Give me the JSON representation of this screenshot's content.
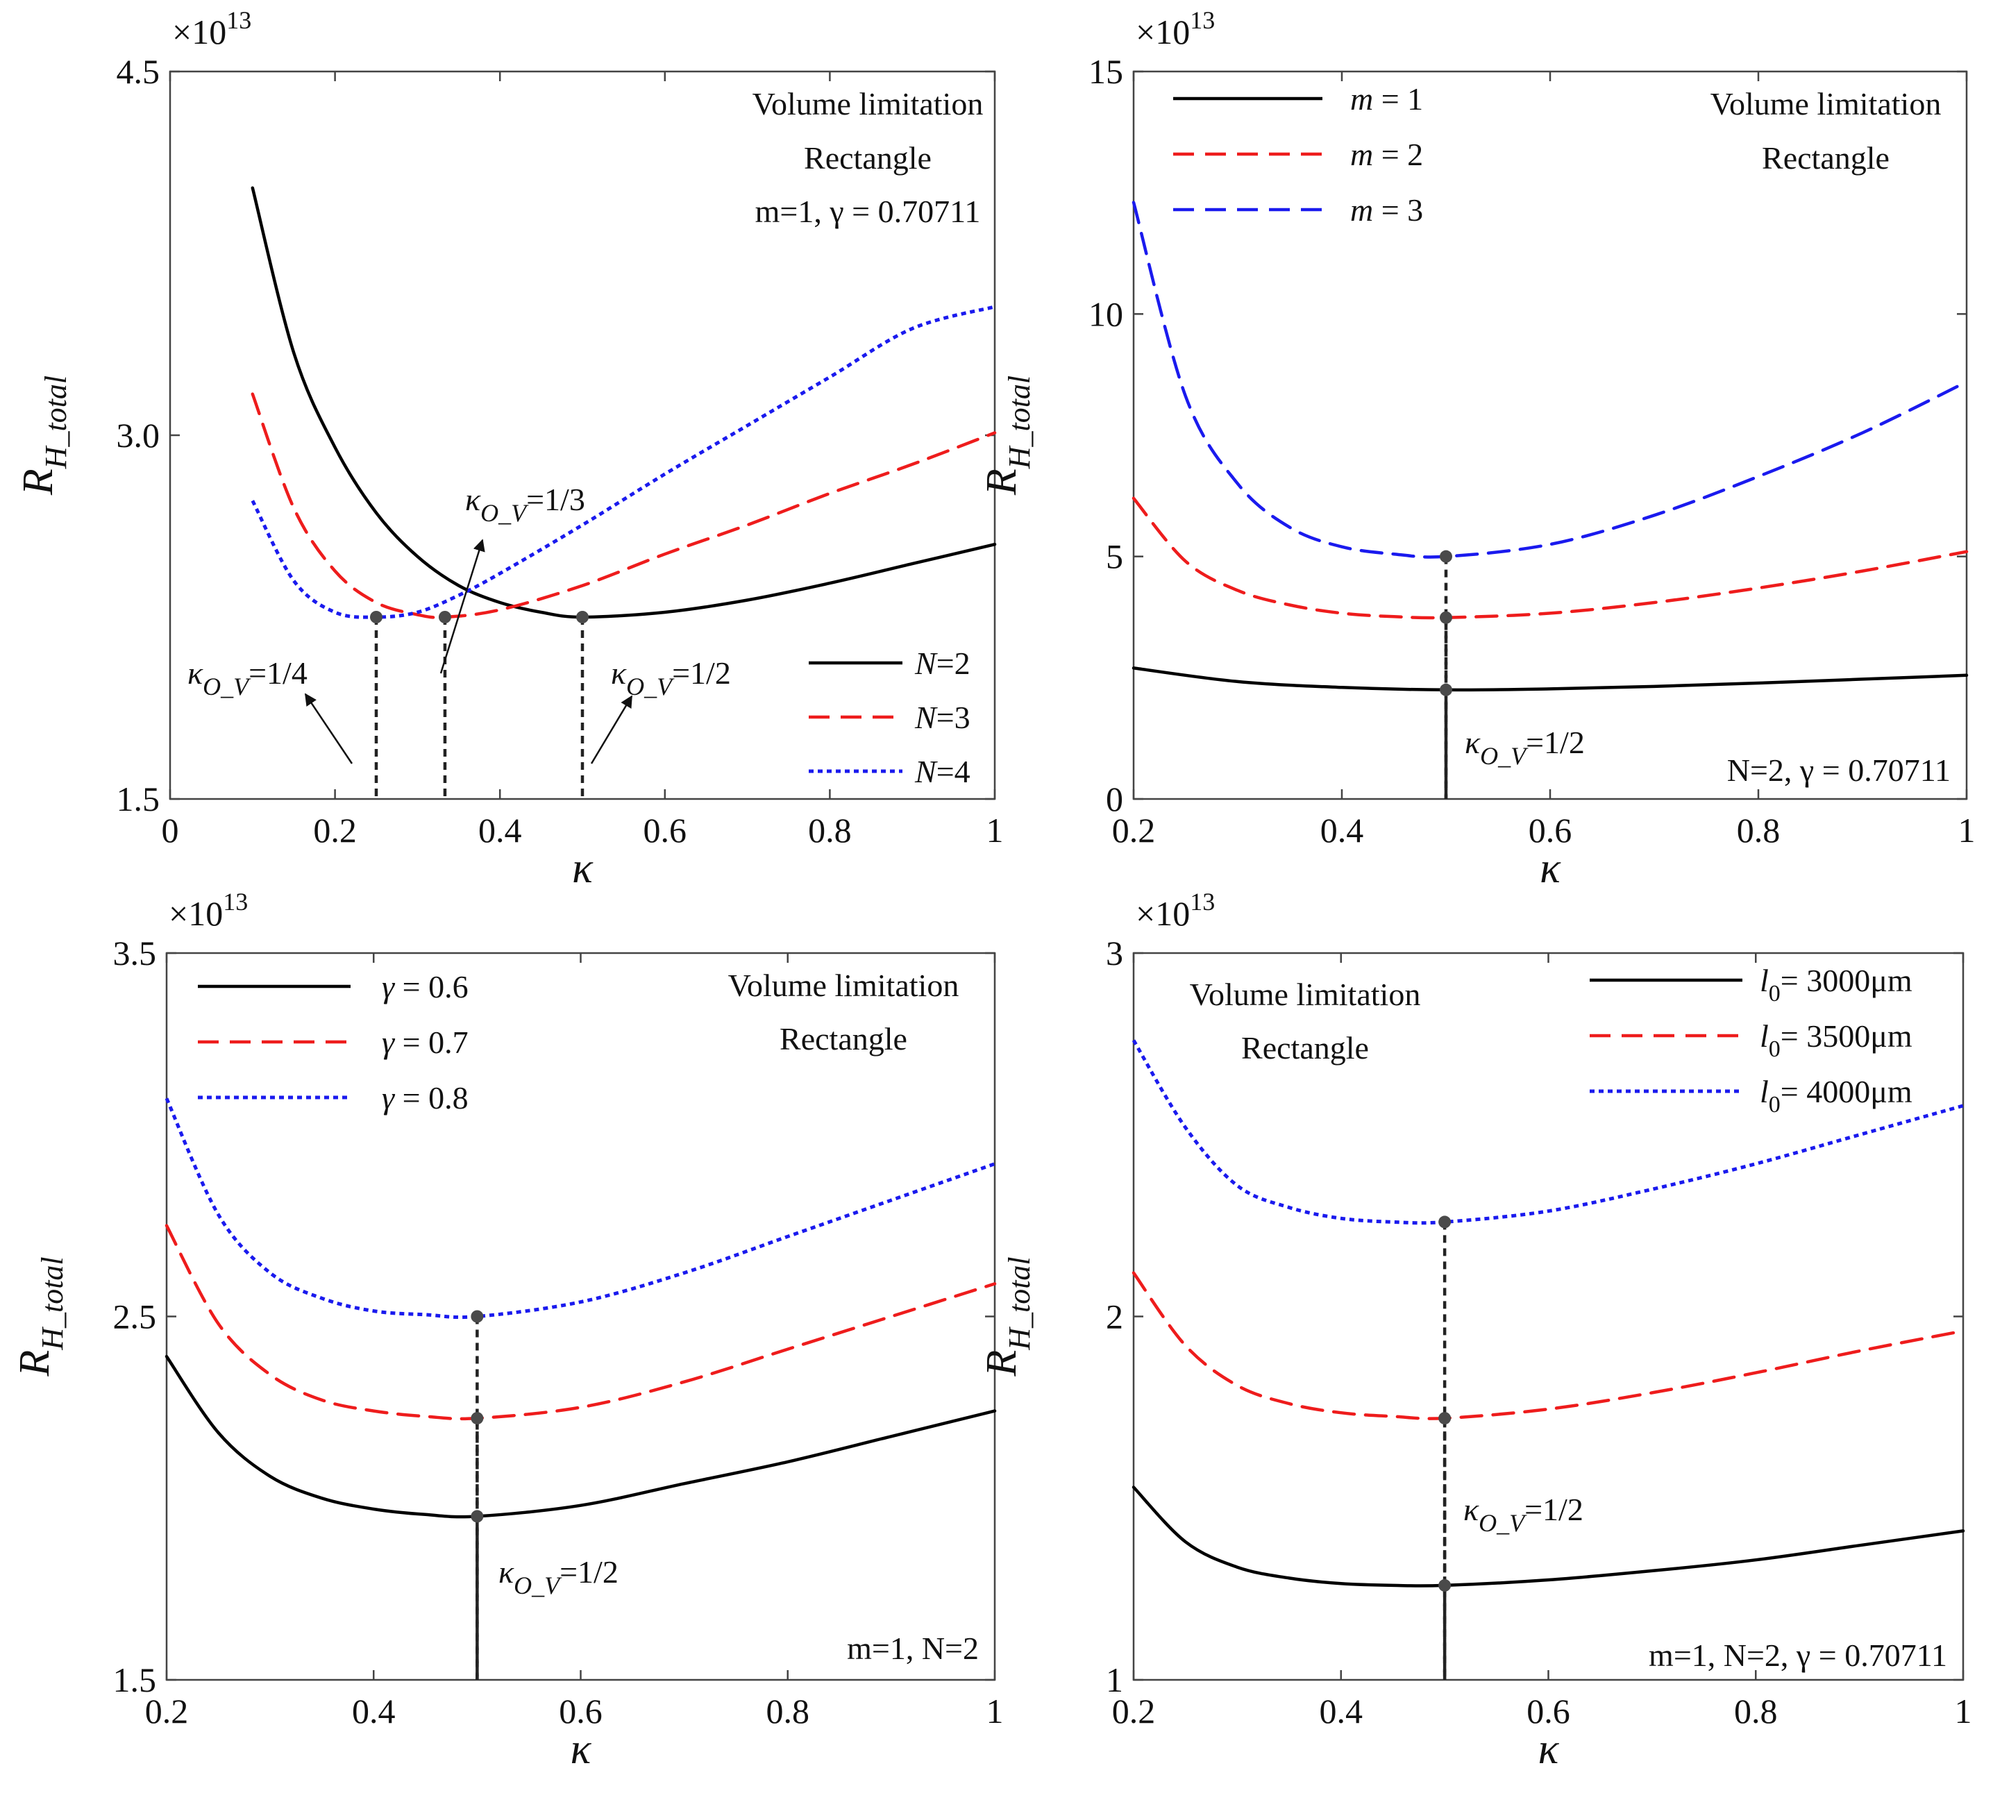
{
  "chart_data": [
    {
      "type": "line",
      "xlabel": "κ",
      "ylabel": "R_H_total",
      "ylabel_main": "R",
      "ylabel_sub": "H_total",
      "multiplier": "×10",
      "multiplier_exp": "13",
      "xlim": [
        0,
        1
      ],
      "ylim": [
        1.5,
        4.5
      ],
      "xticks": [
        0,
        0.2,
        0.4,
        0.6,
        0.8,
        1
      ],
      "xtick_labels": [
        "0",
        "0.2",
        "0.4",
        "0.6",
        "0.8",
        "1"
      ],
      "yticks": [
        1.5,
        3.0,
        4.5
      ],
      "ytick_labels": [
        "1.5",
        "3.0",
        "4.5"
      ],
      "annotation_lines": [
        "Volume limitation",
        "Rectangle",
        "m=1, γ = 0.70711"
      ],
      "legend_position": "bottom-right",
      "series": [
        {
          "name": "N=2",
          "label_italic": "N",
          "label_rest": "=2",
          "color": "#000000",
          "style": "solid",
          "x": [
            0.1,
            0.15,
            0.2,
            0.25,
            0.3,
            0.35,
            0.4,
            0.45,
            0.5,
            0.6,
            0.7,
            0.8,
            0.9,
            1.0
          ],
          "values": [
            4.02,
            3.34,
            2.95,
            2.68,
            2.5,
            2.38,
            2.31,
            2.27,
            2.25,
            2.27,
            2.32,
            2.39,
            2.47,
            2.55
          ]
        },
        {
          "name": "N=3",
          "label_italic": "N",
          "label_rest": "=3",
          "color": "#ee1c1c",
          "style": "dashed",
          "x": [
            0.1,
            0.15,
            0.2,
            0.25,
            0.3,
            0.3333,
            0.4,
            0.5,
            0.6,
            0.7,
            0.8,
            0.9,
            1.0
          ],
          "values": [
            3.17,
            2.7,
            2.44,
            2.31,
            2.26,
            2.25,
            2.28,
            2.38,
            2.51,
            2.63,
            2.76,
            2.88,
            3.01
          ]
        },
        {
          "name": "N=4",
          "label_italic": "N",
          "label_rest": "=4",
          "color": "#1a1aee",
          "style": "dotted",
          "x": [
            0.1,
            0.15,
            0.2,
            0.25,
            0.3,
            0.35,
            0.4,
            0.5,
            0.6,
            0.7,
            0.8,
            0.9,
            1.0
          ],
          "values": [
            2.73,
            2.4,
            2.27,
            2.25,
            2.27,
            2.34,
            2.43,
            2.63,
            2.84,
            3.04,
            3.24,
            3.44,
            3.53
          ]
        }
      ],
      "markers": [
        {
          "x": 0.25,
          "y": 2.25,
          "label": "κ",
          "label_sub": "O_V",
          "label_rest": "=1/4"
        },
        {
          "x": 0.3333,
          "y": 2.25,
          "label": "κ",
          "label_sub": "O_V",
          "label_rest": "=1/3"
        },
        {
          "x": 0.5,
          "y": 2.25,
          "label": "κ",
          "label_sub": "O_V",
          "label_rest": "=1/2"
        }
      ]
    },
    {
      "type": "line",
      "xlabel": "κ",
      "ylabel": "R_H_total",
      "ylabel_main": "R",
      "ylabel_sub": "H_total",
      "multiplier": "×10",
      "multiplier_exp": "13",
      "xlim": [
        0.2,
        1
      ],
      "ylim": [
        0,
        15
      ],
      "xticks": [
        0.2,
        0.4,
        0.6,
        0.8,
        1
      ],
      "xtick_labels": [
        "0.2",
        "0.4",
        "0.6",
        "0.8",
        "1"
      ],
      "yticks": [
        0,
        5,
        10,
        15
      ],
      "ytick_labels": [
        "0",
        "5",
        "10",
        "15"
      ],
      "annotation_lines": [
        "Volume limitation",
        "Rectangle",
        "N=2, γ = 0.70711"
      ],
      "legend_position": "top-left",
      "series": [
        {
          "name": "m = 1",
          "label_italic": "m",
          "label_rest": " = 1",
          "color": "#000000",
          "style": "solid",
          "x": [
            0.2,
            0.3,
            0.4,
            0.5,
            0.6,
            0.7,
            0.8,
            0.9,
            1.0
          ],
          "values": [
            2.7,
            2.42,
            2.3,
            2.25,
            2.27,
            2.32,
            2.39,
            2.47,
            2.55
          ]
        },
        {
          "name": "m = 2",
          "label_italic": "m",
          "label_rest": " = 2",
          "color": "#ee1c1c",
          "style": "dashed",
          "x": [
            0.2,
            0.25,
            0.3,
            0.35,
            0.4,
            0.45,
            0.5,
            0.6,
            0.7,
            0.8,
            0.9,
            1.0
          ],
          "values": [
            6.2,
            4.9,
            4.3,
            4.0,
            3.83,
            3.76,
            3.74,
            3.83,
            4.05,
            4.35,
            4.7,
            5.1
          ]
        },
        {
          "name": "m = 3",
          "label_italic": "m",
          "label_rest": " = 3",
          "color": "#1a1aee",
          "style": "dashed",
          "x": [
            0.2,
            0.25,
            0.3,
            0.35,
            0.4,
            0.45,
            0.5,
            0.6,
            0.7,
            0.8,
            0.9,
            1.0
          ],
          "values": [
            12.3,
            8.3,
            6.5,
            5.6,
            5.2,
            5.05,
            5.0,
            5.25,
            5.85,
            6.65,
            7.55,
            8.6
          ]
        }
      ],
      "markers": [
        {
          "x": 0.5,
          "y": 5.0
        },
        {
          "x": 0.5,
          "y": 3.74
        },
        {
          "x": 0.5,
          "y": 2.25,
          "label": "κ",
          "label_sub": "O_V",
          "label_rest": "=1/2"
        }
      ]
    },
    {
      "type": "line",
      "xlabel": "κ",
      "ylabel": "R_H_total",
      "ylabel_main": "R",
      "ylabel_sub": "H_total",
      "multiplier": "×10",
      "multiplier_exp": "13",
      "xlim": [
        0.2,
        1
      ],
      "ylim": [
        1.5,
        3.5
      ],
      "xticks": [
        0.2,
        0.4,
        0.6,
        0.8,
        1
      ],
      "xtick_labels": [
        "0.2",
        "0.4",
        "0.6",
        "0.8",
        "1"
      ],
      "yticks": [
        1.5,
        2.5,
        3.5
      ],
      "ytick_labels": [
        "1.5",
        "2.5",
        "3.5"
      ],
      "annotation_lines": [
        "Volume limitation",
        "Rectangle",
        "m=1, N=2"
      ],
      "legend_position": "top-left",
      "series": [
        {
          "name": "γ = 0.6",
          "label_italic": "γ",
          "label_rest": " = 0.6",
          "color": "#000000",
          "style": "solid",
          "x": [
            0.2,
            0.25,
            0.3,
            0.35,
            0.4,
            0.45,
            0.5,
            0.6,
            0.7,
            0.8,
            0.9,
            1.0
          ],
          "values": [
            2.39,
            2.18,
            2.06,
            2.0,
            1.97,
            1.955,
            1.95,
            1.98,
            2.04,
            2.1,
            2.17,
            2.24
          ]
        },
        {
          "name": "γ = 0.7",
          "label_italic": "γ",
          "label_rest": " = 0.7",
          "color": "#ee1c1c",
          "style": "dashed",
          "x": [
            0.2,
            0.25,
            0.3,
            0.35,
            0.4,
            0.45,
            0.5,
            0.6,
            0.7,
            0.8,
            0.9,
            1.0
          ],
          "values": [
            2.75,
            2.48,
            2.34,
            2.27,
            2.24,
            2.225,
            2.22,
            2.25,
            2.32,
            2.41,
            2.5,
            2.59
          ]
        },
        {
          "name": "γ = 0.8",
          "label_italic": "γ",
          "label_rest": " = 0.8",
          "color": "#1a1aee",
          "style": "dotted",
          "x": [
            0.2,
            0.25,
            0.3,
            0.35,
            0.4,
            0.45,
            0.5,
            0.6,
            0.7,
            0.8,
            0.9,
            1.0
          ],
          "values": [
            3.1,
            2.78,
            2.62,
            2.55,
            2.515,
            2.505,
            2.5,
            2.54,
            2.62,
            2.72,
            2.82,
            2.92
          ]
        }
      ],
      "markers": [
        {
          "x": 0.5,
          "y": 2.5
        },
        {
          "x": 0.5,
          "y": 2.22
        },
        {
          "x": 0.5,
          "y": 1.95,
          "label": "κ",
          "label_sub": "O_V",
          "label_rest": "=1/2"
        }
      ]
    },
    {
      "type": "line",
      "xlabel": "κ",
      "ylabel": "R_H_total",
      "ylabel_main": "R",
      "ylabel_sub": "H_total",
      "multiplier": "×10",
      "multiplier_exp": "13",
      "xlim": [
        0.2,
        1
      ],
      "ylim": [
        1,
        3
      ],
      "xticks": [
        0.2,
        0.4,
        0.6,
        0.8,
        1
      ],
      "xtick_labels": [
        "0.2",
        "0.4",
        "0.6",
        "0.8",
        "1"
      ],
      "yticks": [
        1,
        2,
        3
      ],
      "ytick_labels": [
        "1",
        "2",
        "3"
      ],
      "annotation_lines": [
        "Volume limitation",
        "Rectangle",
        "m=1, N=2, γ = 0.70711"
      ],
      "legend_position": "top-right",
      "series": [
        {
          "name": "l0= 3000μm",
          "label_italic": "l",
          "label_sub": "0",
          "label_rest": "= 3000μm",
          "color": "#000000",
          "style": "solid",
          "x": [
            0.2,
            0.25,
            0.3,
            0.35,
            0.4,
            0.45,
            0.5,
            0.6,
            0.7,
            0.8,
            0.9,
            1.0
          ],
          "values": [
            1.53,
            1.38,
            1.31,
            1.28,
            1.265,
            1.26,
            1.26,
            1.275,
            1.3,
            1.33,
            1.37,
            1.41
          ]
        },
        {
          "name": "l0= 3500μm",
          "label_italic": "l",
          "label_sub": "0",
          "label_rest": "= 3500μm",
          "color": "#ee1c1c",
          "style": "dashed",
          "x": [
            0.2,
            0.25,
            0.3,
            0.35,
            0.4,
            0.45,
            0.5,
            0.6,
            0.7,
            0.8,
            0.9,
            1.0
          ],
          "values": [
            2.12,
            1.92,
            1.81,
            1.76,
            1.735,
            1.725,
            1.72,
            1.745,
            1.79,
            1.845,
            1.905,
            1.96
          ]
        },
        {
          "name": "l0= 4000μm",
          "label_italic": "l",
          "label_sub": "0",
          "label_rest": "= 4000μm",
          "color": "#1a1aee",
          "style": "dotted",
          "x": [
            0.2,
            0.25,
            0.3,
            0.35,
            0.4,
            0.45,
            0.5,
            0.6,
            0.7,
            0.8,
            0.9,
            1.0
          ],
          "values": [
            2.76,
            2.52,
            2.36,
            2.3,
            2.27,
            2.26,
            2.26,
            2.29,
            2.35,
            2.42,
            2.5,
            2.58
          ]
        }
      ],
      "markers": [
        {
          "x": 0.5,
          "y": 2.26
        },
        {
          "x": 0.5,
          "y": 1.72
        },
        {
          "x": 0.5,
          "y": 1.26,
          "label": "κ",
          "label_sub": "O_V",
          "label_rest": "=1/2"
        }
      ]
    }
  ]
}
